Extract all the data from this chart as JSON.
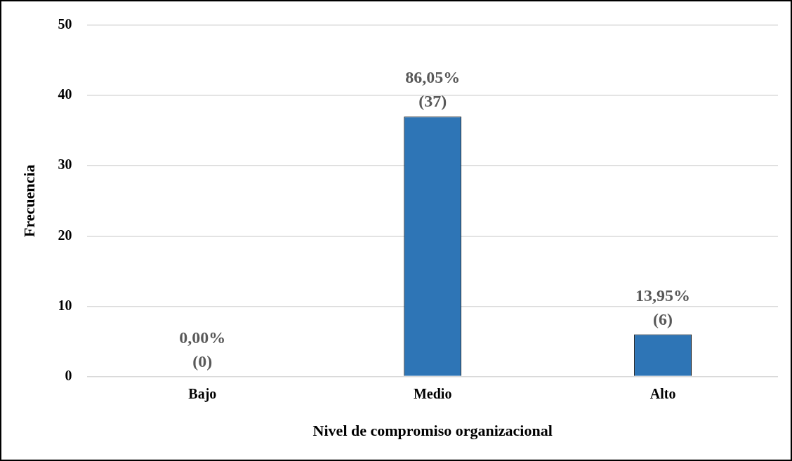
{
  "chart_data": {
    "type": "bar",
    "xlabel": "Nivel de compromiso organizacional",
    "ylabel": "Frecuencia",
    "categories": [
      "Bajo",
      "Medio",
      "Alto"
    ],
    "values": [
      0,
      37,
      6
    ],
    "value_labels": [
      "0,00%\n(0)",
      "86,05%\n(37)",
      "13,95%\n(6)"
    ],
    "color": "#2e75b6",
    "ylim": [
      0,
      50
    ],
    "yticks": [
      0,
      10,
      20,
      30,
      40,
      50
    ],
    "grid": "y",
    "legend": false
  }
}
